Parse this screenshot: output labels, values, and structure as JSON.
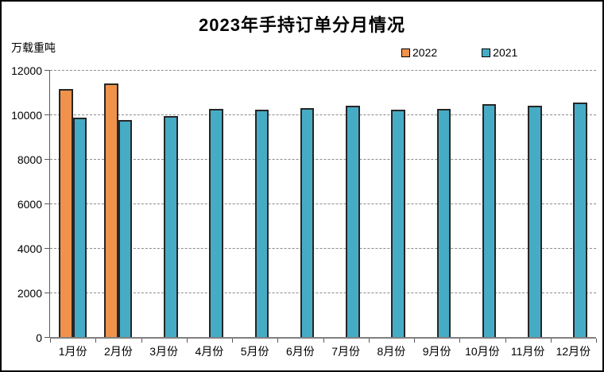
{
  "page": {
    "title": "2023年手持订单分月情况",
    "unit_label": "万载重吨"
  },
  "chart_data": {
    "type": "bar",
    "title": "2023年手持订单分月情况",
    "ylabel": "万载重吨",
    "xlabel": "",
    "categories": [
      "1月份",
      "2月份",
      "3月份",
      "4月份",
      "5月份",
      "6月份",
      "7月份",
      "8月份",
      "9月份",
      "10月份",
      "11月份",
      "12月份"
    ],
    "series": [
      {
        "name": "2022",
        "color": "#F0924B",
        "values": [
          11130,
          11390,
          null,
          null,
          null,
          null,
          null,
          null,
          null,
          null,
          null,
          null
        ]
      },
      {
        "name": "2021",
        "color": "#46ACC6",
        "values": [
          9840,
          9740,
          9930,
          10260,
          10230,
          10290,
          10390,
          10220,
          10250,
          10450,
          10390,
          10550
        ]
      }
    ],
    "ylim": [
      0,
      12000
    ],
    "ytick_step": 2000,
    "yticks": [
      "0",
      "2000",
      "4000",
      "6000",
      "8000",
      "10000",
      "12000"
    ],
    "grid": "horizontal-dashed",
    "legend_position": "top"
  },
  "colors": {
    "bar_border": "#262626",
    "axis_line": "#7f7f7f",
    "gridline": "#8c8c8c",
    "background": "#ffffff",
    "page_border": "#000000"
  }
}
